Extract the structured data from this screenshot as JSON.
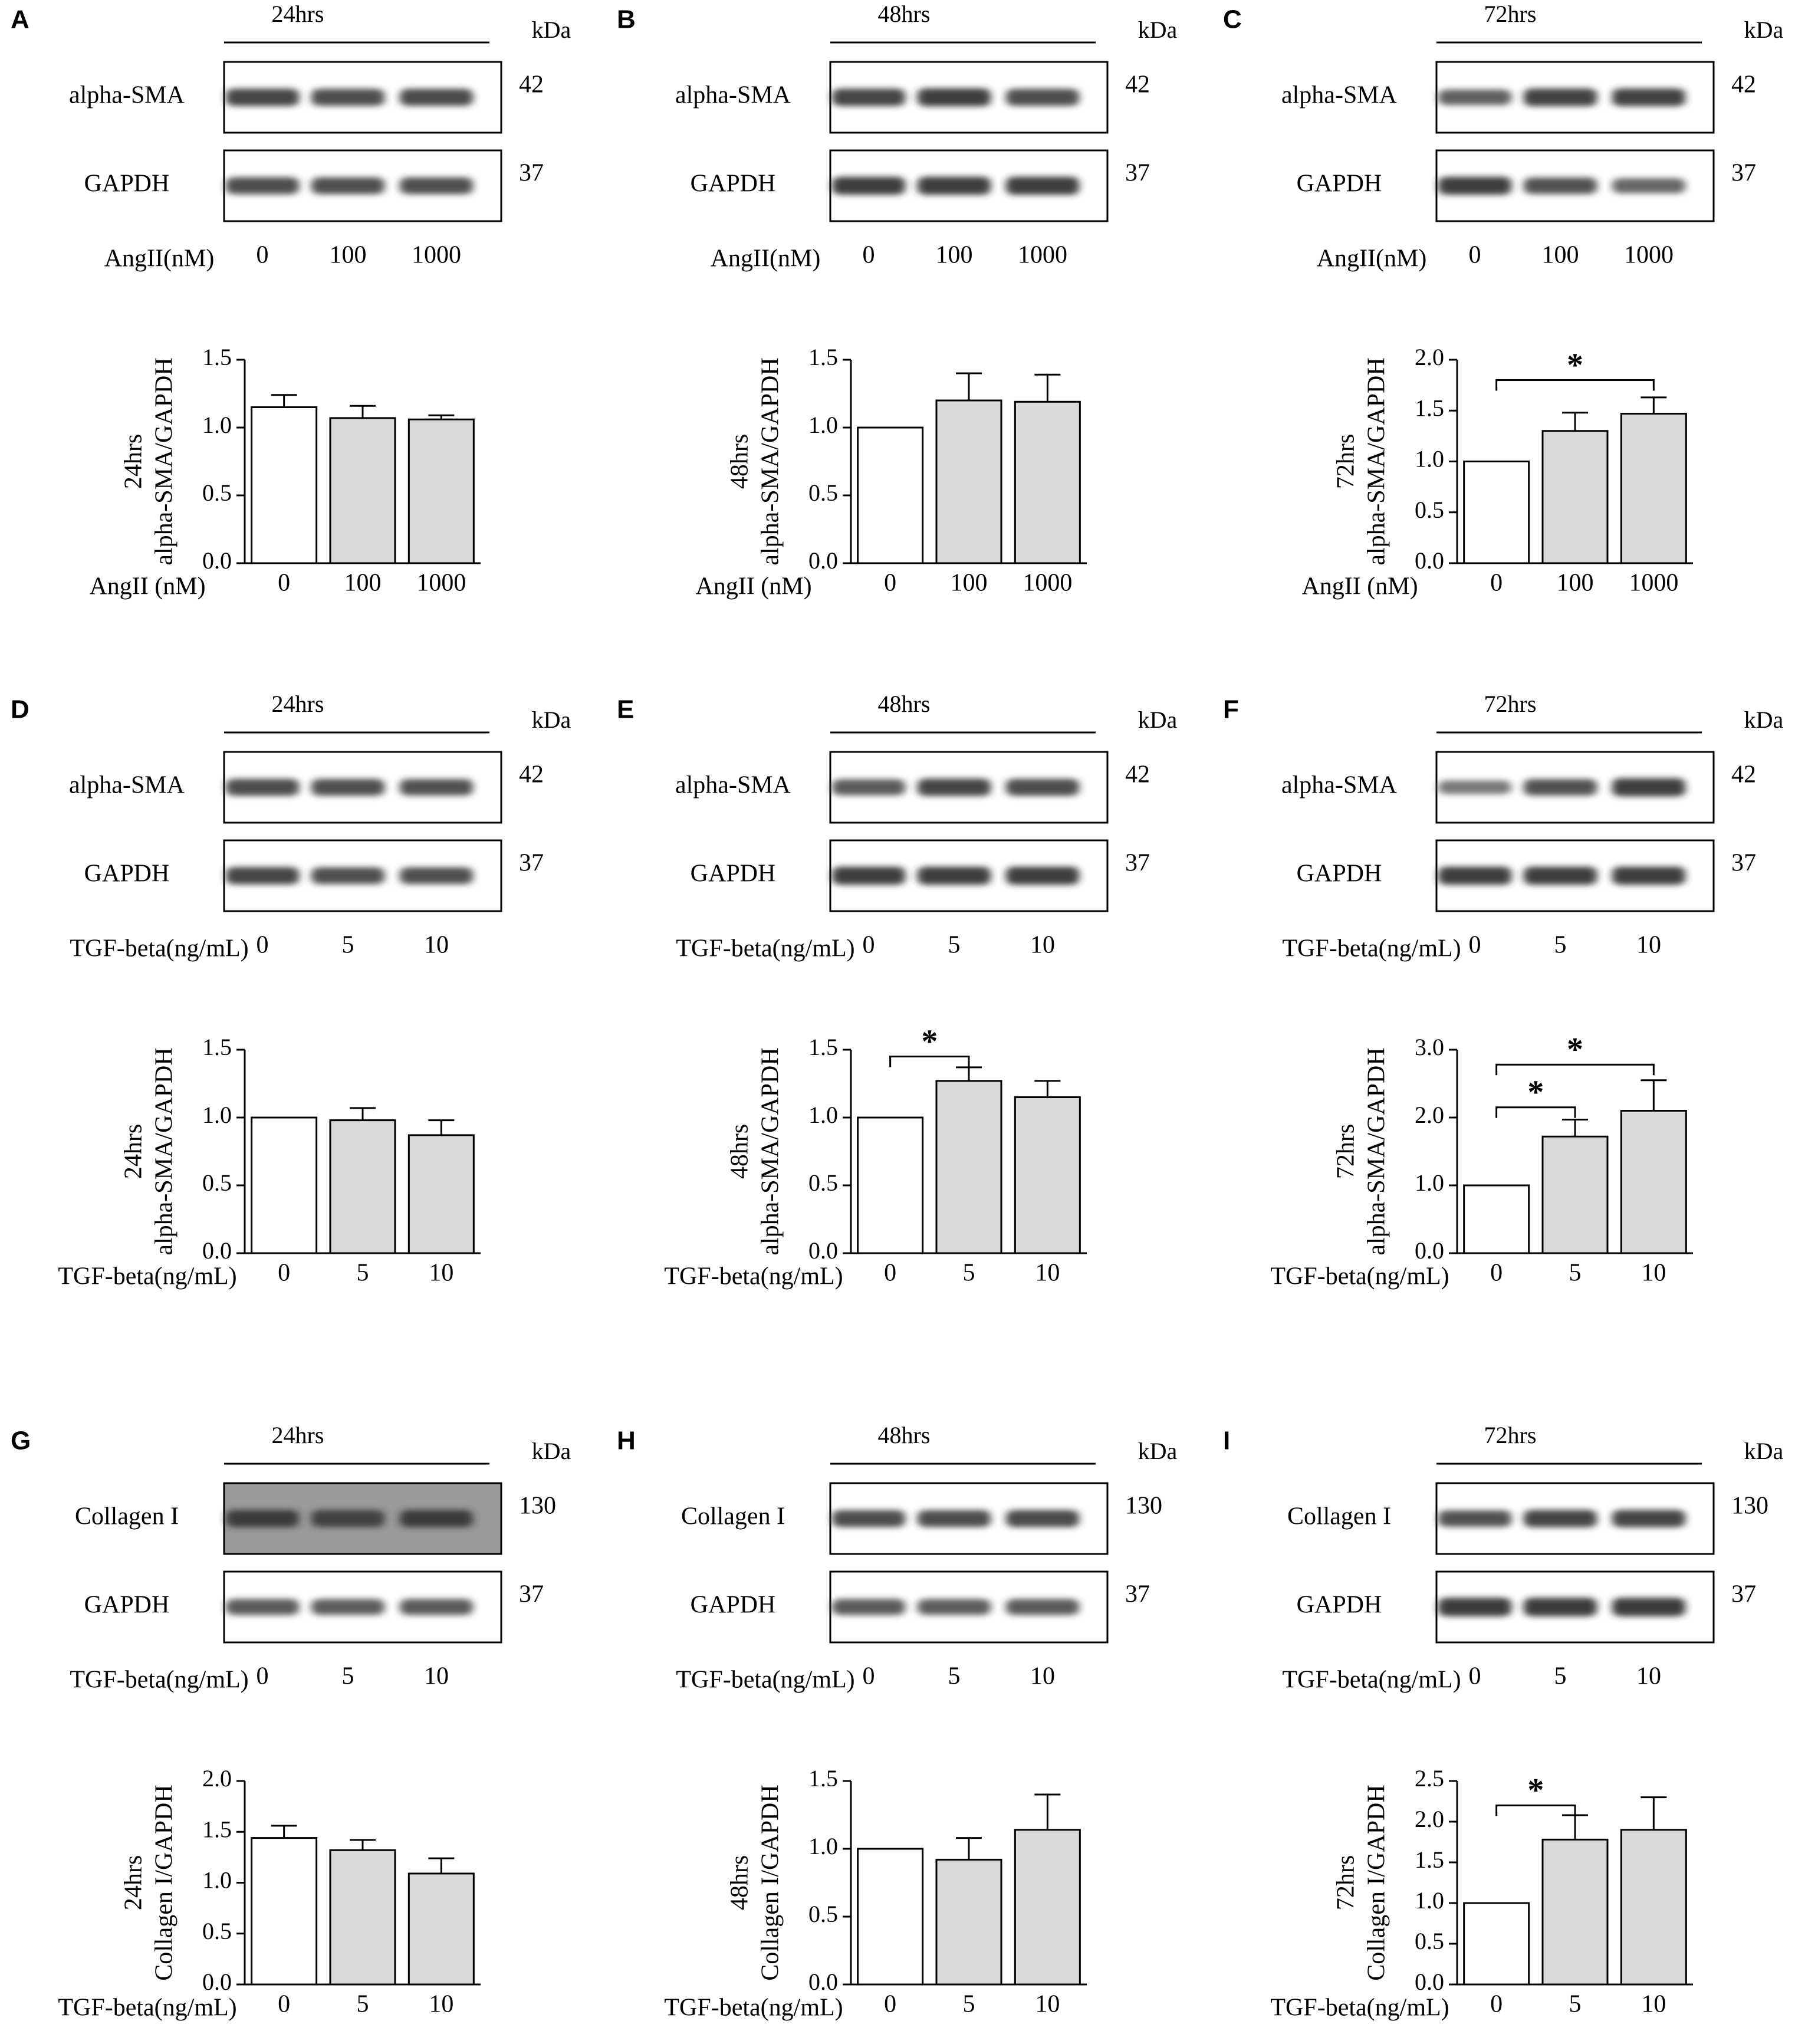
{
  "chart_data": [
    {
      "panel": "A",
      "type": "bar",
      "blot": {
        "time": "24hrs",
        "kda_label": "kDa",
        "rows": [
          {
            "label": "alpha-SMA",
            "kda": "42"
          },
          {
            "label": "GAPDH",
            "kda": "37"
          }
        ],
        "treatment_label": "AngII(nM)",
        "lanes": [
          "0",
          "100",
          "1000"
        ],
        "band_strength": [
          [
            0.85,
            0.8,
            0.82
          ],
          [
            0.8,
            0.78,
            0.78
          ]
        ]
      },
      "xlabel": "AngII (nM)",
      "ylabel": [
        "24hrs",
        "alpha-SMA/GAPDH"
      ],
      "categories": [
        "0",
        "100",
        "1000"
      ],
      "values": [
        1.15,
        1.07,
        1.06
      ],
      "errors": [
        0.09,
        0.09,
        0.03
      ],
      "ylim": [
        0,
        1.5
      ],
      "yticks": [
        "0.0",
        "0.5",
        "1.0",
        "1.5"
      ],
      "bar_fill": [
        "#ffffff",
        "#d9d9d9",
        "#d9d9d9"
      ],
      "significance": []
    },
    {
      "panel": "B",
      "type": "bar",
      "blot": {
        "time": "48hrs",
        "kda_label": "kDa",
        "rows": [
          {
            "label": "alpha-SMA",
            "kda": "42"
          },
          {
            "label": "GAPDH",
            "kda": "37"
          }
        ],
        "treatment_label": "AngII(nM)",
        "lanes": [
          "0",
          "100",
          "1000"
        ],
        "band_strength": [
          [
            0.85,
            0.9,
            0.8
          ],
          [
            0.9,
            0.92,
            0.92
          ]
        ]
      },
      "xlabel": "AngII (nM)",
      "ylabel": [
        "48hrs",
        "alpha-SMA/GAPDH"
      ],
      "categories": [
        "0",
        "100",
        "1000"
      ],
      "values": [
        1.0,
        1.2,
        1.19
      ],
      "errors": [
        0.0,
        0.2,
        0.2
      ],
      "ylim": [
        0,
        1.5
      ],
      "yticks": [
        "0.0",
        "0.5",
        "1.0",
        "1.5"
      ],
      "bar_fill": [
        "#ffffff",
        "#d9d9d9",
        "#d9d9d9"
      ],
      "significance": []
    },
    {
      "panel": "C",
      "type": "bar",
      "blot": {
        "time": "72hrs",
        "kda_label": "kDa",
        "rows": [
          {
            "label": "alpha-SMA",
            "kda": "42"
          },
          {
            "label": "GAPDH",
            "kda": "37"
          }
        ],
        "treatment_label": "AngII(nM)",
        "lanes": [
          "0",
          "100",
          "1000"
        ],
        "band_strength": [
          [
            0.65,
            0.88,
            0.88
          ],
          [
            0.9,
            0.75,
            0.6
          ]
        ]
      },
      "xlabel": "AngII (nM)",
      "ylabel": [
        "72hrs",
        "alpha-SMA/GAPDH"
      ],
      "categories": [
        "0",
        "100",
        "1000"
      ],
      "values": [
        1.0,
        1.3,
        1.47
      ],
      "errors": [
        0.0,
        0.18,
        0.16
      ],
      "ylim": [
        0,
        2.0
      ],
      "yticks": [
        "0.0",
        "0.5",
        "1.0",
        "1.5",
        "2.0"
      ],
      "bar_fill": [
        "#ffffff",
        "#d9d9d9",
        "#d9d9d9"
      ],
      "significance": [
        {
          "from": 0,
          "to": 2,
          "y": 1.8,
          "label": "*"
        }
      ]
    },
    {
      "panel": "D",
      "type": "bar",
      "blot": {
        "time": "24hrs",
        "kda_label": "kDa",
        "rows": [
          {
            "label": "alpha-SMA",
            "kda": "42"
          },
          {
            "label": "GAPDH",
            "kda": "37"
          }
        ],
        "treatment_label": "TGF-beta(ng/mL)",
        "lanes": [
          "0",
          "5",
          "10"
        ],
        "band_strength": [
          [
            0.8,
            0.78,
            0.75
          ],
          [
            0.85,
            0.78,
            0.78
          ]
        ]
      },
      "xlabel": "TGF-beta(ng/mL)",
      "ylabel": [
        "24hrs",
        "alpha-SMA/GAPDH"
      ],
      "categories": [
        "0",
        "5",
        "10"
      ],
      "values": [
        1.0,
        0.98,
        0.87
      ],
      "errors": [
        0.0,
        0.09,
        0.11
      ],
      "ylim": [
        0,
        1.5
      ],
      "yticks": [
        "0.0",
        "0.5",
        "1.0",
        "1.5"
      ],
      "bar_fill": [
        "#ffffff",
        "#d9d9d9",
        "#d9d9d9"
      ],
      "significance": []
    },
    {
      "panel": "E",
      "type": "bar",
      "blot": {
        "time": "48hrs",
        "kda_label": "kDa",
        "rows": [
          {
            "label": "alpha-SMA",
            "kda": "42"
          },
          {
            "label": "GAPDH",
            "kda": "37"
          }
        ],
        "treatment_label": "TGF-beta(ng/mL)",
        "lanes": [
          "0",
          "5",
          "10"
        ],
        "band_strength": [
          [
            0.7,
            0.85,
            0.8
          ],
          [
            0.92,
            0.92,
            0.92
          ]
        ]
      },
      "xlabel": "TGF-beta(ng/mL)",
      "ylabel": [
        "48hrs",
        "alpha-SMA/GAPDH"
      ],
      "categories": [
        "0",
        "5",
        "10"
      ],
      "values": [
        1.0,
        1.27,
        1.15
      ],
      "errors": [
        0.0,
        0.1,
        0.12
      ],
      "ylim": [
        0,
        1.5
      ],
      "yticks": [
        "0.0",
        "0.5",
        "1.0",
        "1.5"
      ],
      "bar_fill": [
        "#ffffff",
        "#d9d9d9",
        "#d9d9d9"
      ],
      "significance": [
        {
          "from": 0,
          "to": 1,
          "y": 1.45,
          "label": "*"
        }
      ]
    },
    {
      "panel": "F",
      "type": "bar",
      "blot": {
        "time": "72hrs",
        "kda_label": "kDa",
        "rows": [
          {
            "label": "alpha-SMA",
            "kda": "42"
          },
          {
            "label": "GAPDH",
            "kda": "37"
          }
        ],
        "treatment_label": "TGF-beta(ng/mL)",
        "lanes": [
          "0",
          "5",
          "10"
        ],
        "band_strength": [
          [
            0.45,
            0.75,
            0.92
          ],
          [
            0.92,
            0.92,
            0.92
          ]
        ]
      },
      "xlabel": "TGF-beta(ng/mL)",
      "ylabel": [
        "72hrs",
        "alpha-SMA/GAPDH"
      ],
      "categories": [
        "0",
        "5",
        "10"
      ],
      "values": [
        1.0,
        1.72,
        2.1
      ],
      "errors": [
        0.0,
        0.25,
        0.45
      ],
      "ylim": [
        0,
        3.0
      ],
      "yticks": [
        "0.0",
        "1.0",
        "2.0",
        "3.0"
      ],
      "bar_fill": [
        "#ffffff",
        "#d9d9d9",
        "#d9d9d9"
      ],
      "significance": [
        {
          "from": 0,
          "to": 1,
          "y": 2.15,
          "label": "*"
        },
        {
          "from": 0,
          "to": 2,
          "y": 2.78,
          "label": "*"
        }
      ]
    },
    {
      "panel": "G",
      "type": "bar",
      "blot": {
        "time": "24hrs",
        "kda_label": "kDa",
        "rows": [
          {
            "label": "Collagen I",
            "kda": "130"
          },
          {
            "label": "GAPDH",
            "kda": "37"
          }
        ],
        "treatment_label": "TGF-beta(ng/mL)",
        "lanes": [
          "0",
          "5",
          "10"
        ],
        "band_strength": [
          [
            0.85,
            0.82,
            0.85
          ],
          [
            0.7,
            0.68,
            0.7
          ]
        ],
        "blot_bg": [
          "#9a9a9a",
          "#ffffff"
        ]
      },
      "xlabel": "TGF-beta(ng/mL)",
      "ylabel": [
        "24hrs",
        "Collagen I/GAPDH"
      ],
      "categories": [
        "0",
        "5",
        "10"
      ],
      "values": [
        1.44,
        1.32,
        1.09
      ],
      "errors": [
        0.12,
        0.1,
        0.15
      ],
      "ylim": [
        0,
        2.0
      ],
      "yticks": [
        "0.0",
        "0.5",
        "1.0",
        "1.5",
        "2.0"
      ],
      "bar_fill": [
        "#ffffff",
        "#d9d9d9",
        "#d9d9d9"
      ],
      "significance": []
    },
    {
      "panel": "H",
      "type": "bar",
      "blot": {
        "time": "48hrs",
        "kda_label": "kDa",
        "rows": [
          {
            "label": "Collagen I",
            "kda": "130"
          },
          {
            "label": "GAPDH",
            "kda": "37"
          }
        ],
        "treatment_label": "TGF-beta(ng/mL)",
        "lanes": [
          "0",
          "5",
          "10"
        ],
        "band_strength": [
          [
            0.8,
            0.8,
            0.82
          ],
          [
            0.7,
            0.68,
            0.7
          ]
        ]
      },
      "xlabel": "TGF-beta(ng/mL)",
      "ylabel": [
        "48hrs",
        "Collagen I/GAPDH"
      ],
      "categories": [
        "0",
        "5",
        "10"
      ],
      "values": [
        1.0,
        0.92,
        1.14
      ],
      "errors": [
        0.0,
        0.16,
        0.26
      ],
      "ylim": [
        0,
        1.5
      ],
      "yticks": [
        "0.0",
        "0.5",
        "1.0",
        "1.5"
      ],
      "bar_fill": [
        "#ffffff",
        "#d9d9d9",
        "#d9d9d9"
      ],
      "significance": []
    },
    {
      "panel": "I",
      "type": "bar",
      "blot": {
        "time": "72hrs",
        "kda_label": "kDa",
        "rows": [
          {
            "label": "Collagen I",
            "kda": "130"
          },
          {
            "label": "GAPDH",
            "kda": "37"
          }
        ],
        "treatment_label": "TGF-beta(ng/mL)",
        "lanes": [
          "0",
          "5",
          "10"
        ],
        "band_strength": [
          [
            0.75,
            0.85,
            0.85
          ],
          [
            0.95,
            0.95,
            0.95
          ]
        ]
      },
      "xlabel": "TGF-beta(ng/mL)",
      "ylabel": [
        "72hrs",
        "Collagen I/GAPDH"
      ],
      "categories": [
        "0",
        "5",
        "10"
      ],
      "values": [
        1.0,
        1.78,
        1.9
      ],
      "errors": [
        0.0,
        0.3,
        0.4
      ],
      "ylim": [
        0,
        2.5
      ],
      "yticks": [
        "0.0",
        "0.5",
        "1.0",
        "1.5",
        "2.0",
        "2.5"
      ],
      "bar_fill": [
        "#ffffff",
        "#d9d9d9",
        "#d9d9d9"
      ],
      "significance": [
        {
          "from": 0,
          "to": 1,
          "y": 2.2,
          "label": "*"
        }
      ]
    }
  ]
}
